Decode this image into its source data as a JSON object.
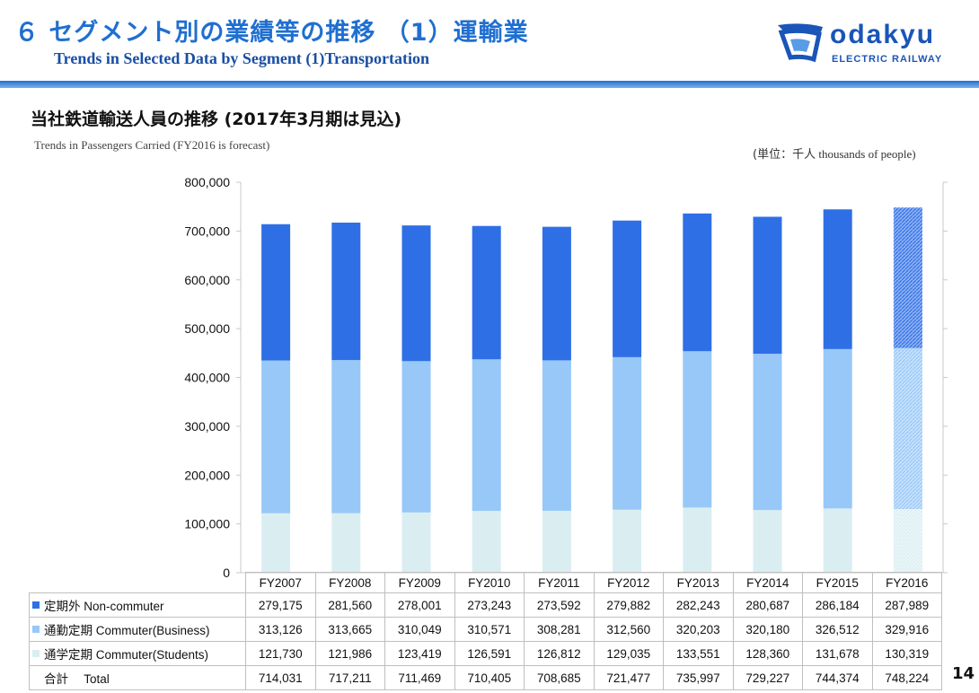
{
  "header": {
    "title_jp": "６ セグメント別の業績等の推移 （1）運輸業",
    "title_en": "Trends in Selected Data by Segment  (1)Transportation"
  },
  "logo": {
    "word": "odakyu",
    "sub": "ELECTRIC RAILWAY"
  },
  "subtitle": {
    "jp": "当社鉄道輸送人員の推移 (2017年3月期は見込)",
    "en": "Trends in Passengers Carried (FY2016 is forecast)"
  },
  "unit": {
    "jp": "(単位：千人",
    "en": " thousands of people)"
  },
  "page_number": "14",
  "colors": {
    "non_commuter": "#2f6fe6",
    "commuter_business": "#97c8f8",
    "commuter_students": "#daeef2",
    "title_blue": "#1f6fd1"
  },
  "chart_data": {
    "type": "bar",
    "stacked": true,
    "categories": [
      "FY2007",
      "FY2008",
      "FY2009",
      "FY2010",
      "FY2011",
      "FY2012",
      "FY2013",
      "FY2014",
      "FY2015",
      "FY2016"
    ],
    "forecast_category": "FY2016",
    "ylim": [
      0,
      800000
    ],
    "yticks": [
      0,
      100000,
      200000,
      300000,
      400000,
      500000,
      600000,
      700000,
      800000
    ],
    "ytick_labels": [
      "0",
      "100,000",
      "200,000",
      "300,000",
      "400,000",
      "500,000",
      "600,000",
      "700,000",
      "800,000"
    ],
    "series": [
      {
        "name": "通学定期 Commuter(Students)",
        "color": "#daeef2",
        "values": [
          121730,
          121986,
          123419,
          126591,
          126812,
          129035,
          133551,
          128360,
          131678,
          130319
        ],
        "labels": [
          "121,730",
          "121,986",
          "123,419",
          "126,591",
          "126,812",
          "129,035",
          "133,551",
          "128,360",
          "131,678",
          "130,319"
        ]
      },
      {
        "name": "通勤定期 Commuter(Business)",
        "color": "#97c8f8",
        "values": [
          313126,
          313665,
          310049,
          310571,
          308281,
          312560,
          320203,
          320180,
          326512,
          329916
        ],
        "labels": [
          "313,126",
          "313,665",
          "310,049",
          "310,571",
          "308,281",
          "312,560",
          "320,203",
          "320,180",
          "326,512",
          "329,916"
        ]
      },
      {
        "name": "定期外 Non-commuter",
        "color": "#2f6fe6",
        "values": [
          279175,
          281560,
          278001,
          273243,
          273592,
          279882,
          282243,
          280687,
          286184,
          287989
        ],
        "labels": [
          "279,175",
          "281,560",
          "278,001",
          "273,243",
          "273,592",
          "279,882",
          "282,243",
          "280,687",
          "286,184",
          "287,989"
        ]
      }
    ],
    "total": {
      "name": "合計　 Total",
      "values": [
        714031,
        717211,
        711469,
        710405,
        708685,
        721477,
        735997,
        729227,
        744374,
        748224
      ],
      "labels": [
        "714,031",
        "717,211",
        "711,469",
        "710,405",
        "708,685",
        "721,477",
        "735,997",
        "729,227",
        "744,374",
        "748,224"
      ]
    }
  }
}
